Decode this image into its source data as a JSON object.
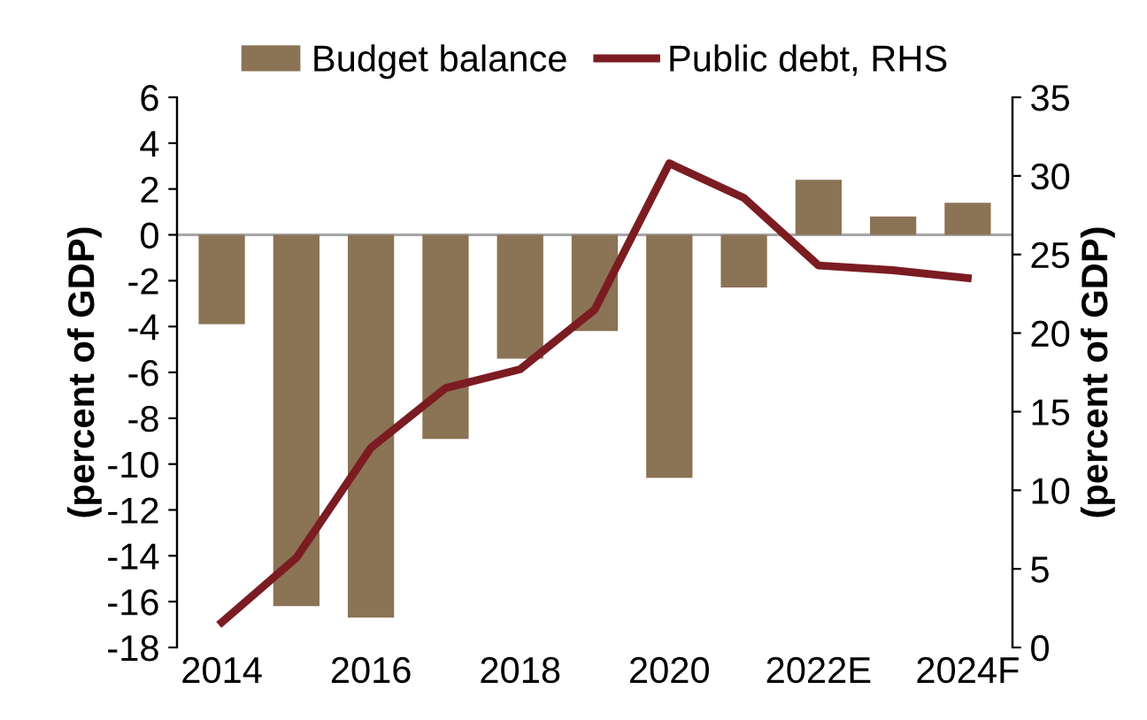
{
  "chart_data": {
    "type": "bar",
    "categories": [
      "2014",
      null,
      "2016",
      null,
      "2018",
      null,
      "2020",
      null,
      "2022E",
      null,
      "2024F"
    ],
    "series": [
      {
        "name": "Budget balance",
        "color": "#8b7355",
        "values": [
          -3.9,
          -16.2,
          -16.7,
          -8.9,
          -5.4,
          -4.2,
          -10.6,
          -2.3,
          2.4,
          0.8,
          1.4
        ]
      },
      {
        "name": "Public debt, RHS",
        "type": "line",
        "axis": "y2",
        "color": "#7b1c22",
        "values": [
          1.6,
          5.7,
          12.7,
          16.5,
          17.7,
          21.5,
          30.8,
          28.6,
          24.3,
          24.0,
          23.5
        ]
      }
    ],
    "ylabel": "(percent of GDP)",
    "y2label": "(percent of GDP)",
    "ylim": [
      -18,
      6
    ],
    "yticks": [
      -18,
      -16,
      -14,
      -12,
      -10,
      -8,
      -6,
      -4,
      -2,
      0,
      2,
      4,
      6
    ],
    "y2lim": [
      0,
      35
    ],
    "y2ticks": [
      0,
      5,
      10,
      15,
      20,
      25,
      30,
      35
    ],
    "ref_lines": [
      {
        "axis": "y",
        "value": 0,
        "color": "#a6a6a6"
      }
    ],
    "legend": "top",
    "grid": false,
    "marker": "none",
    "line_style": "solid"
  }
}
